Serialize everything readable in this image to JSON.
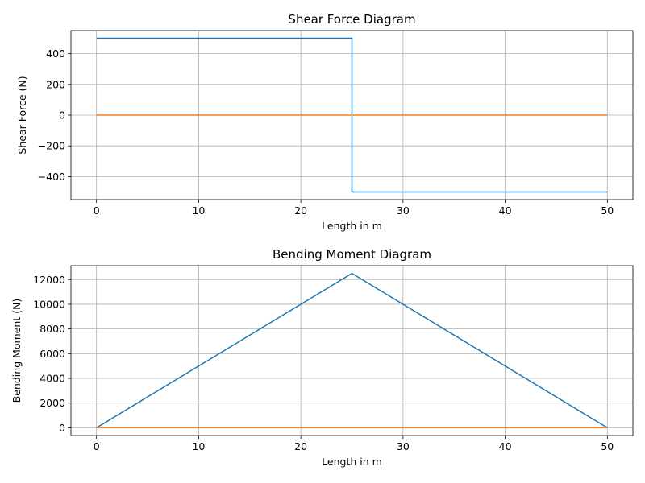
{
  "colors": {
    "series_primary": "#1f77b4",
    "series_secondary": "#ff7f0e",
    "grid": "#b0b0b0",
    "axes": "#000000"
  },
  "chart_data": [
    {
      "type": "line",
      "title": "Shear Force Diagram",
      "xlabel": "Length in m",
      "ylabel": "Shear Force (N)",
      "xlim": [
        -2.5,
        52.5
      ],
      "ylim": [
        -550,
        550
      ],
      "xticks": [
        0,
        10,
        20,
        30,
        40,
        50
      ],
      "yticks": [
        -400,
        -200,
        0,
        200,
        400
      ],
      "grid": true,
      "series": [
        {
          "x": [
            0,
            25,
            25,
            50
          ],
          "y": [
            500,
            500,
            -500,
            -500
          ]
        },
        {
          "x": [
            0,
            50
          ],
          "y": [
            0,
            0
          ]
        }
      ]
    },
    {
      "type": "line",
      "title": "Bending Moment Diagram",
      "xlabel": "Length in m",
      "ylabel": "Bending Moment (N)",
      "xlim": [
        -2.5,
        52.5
      ],
      "ylim": [
        -625,
        13125
      ],
      "xticks": [
        0,
        10,
        20,
        30,
        40,
        50
      ],
      "yticks": [
        0,
        2000,
        4000,
        6000,
        8000,
        10000,
        12000
      ],
      "grid": true,
      "series": [
        {
          "x": [
            0,
            25,
            50
          ],
          "y": [
            0,
            12500,
            0
          ]
        },
        {
          "x": [
            0,
            50
          ],
          "y": [
            0,
            0
          ]
        }
      ]
    }
  ]
}
